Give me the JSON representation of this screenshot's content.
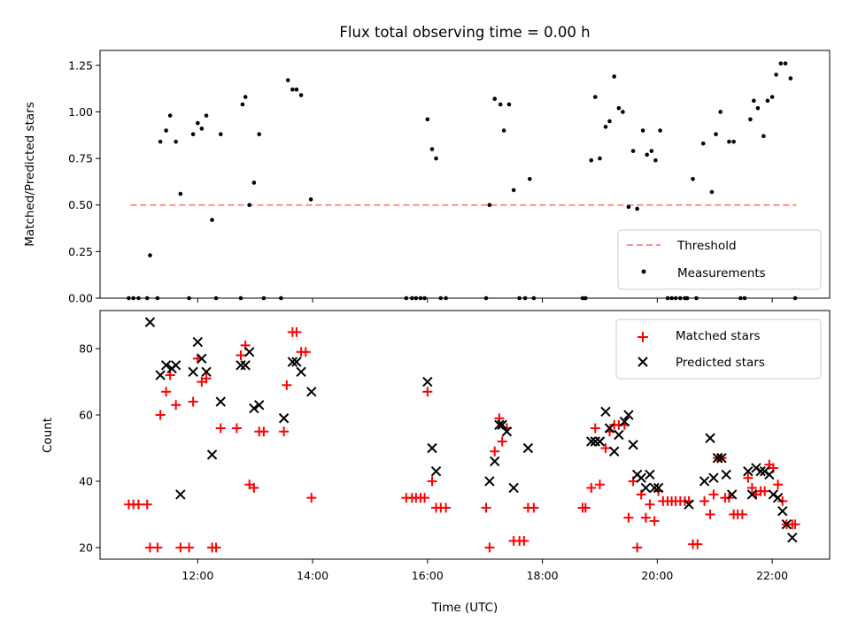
{
  "chart_data": [
    {
      "type": "scatter",
      "title": "Flux total observing time = 0.00 h",
      "xlabel": "",
      "ylabel": "Matched/Predicted stars",
      "ylim": [
        0,
        1.33
      ],
      "xlim_hours": [
        10.3,
        23.0
      ],
      "yticks": [
        "0.00",
        "0.25",
        "0.50",
        "0.75",
        "1.00",
        "1.25"
      ],
      "ytick_values": [
        0,
        0.25,
        0.5,
        0.75,
        1.0,
        1.25
      ],
      "xticks_hours": [
        12,
        14,
        16,
        18,
        20,
        22
      ],
      "legend_position": "lower-right",
      "threshold": {
        "name": "Threshold",
        "value": 0.5,
        "x_start": 10.83,
        "x_end": 22.42,
        "color": "#ff8080"
      },
      "measurements": {
        "name": "Measurements",
        "color": "#000000",
        "points": [
          [
            10.8,
            0
          ],
          [
            10.88,
            0
          ],
          [
            10.97,
            0
          ],
          [
            11.12,
            0
          ],
          [
            11.17,
            0.23
          ],
          [
            11.3,
            0
          ],
          [
            11.35,
            0.84
          ],
          [
            11.45,
            0.9
          ],
          [
            11.52,
            0.98
          ],
          [
            11.62,
            0.84
          ],
          [
            11.7,
            0.56
          ],
          [
            11.85,
            0
          ],
          [
            11.92,
            0.88
          ],
          [
            12.0,
            0.94
          ],
          [
            12.07,
            0.91
          ],
          [
            12.15,
            0.98
          ],
          [
            12.25,
            0.42
          ],
          [
            12.32,
            0
          ],
          [
            12.4,
            0.88
          ],
          [
            12.75,
            0
          ],
          [
            12.78,
            1.04
          ],
          [
            12.83,
            1.08
          ],
          [
            12.9,
            0.5
          ],
          [
            12.98,
            0.62
          ],
          [
            13.07,
            0.88
          ],
          [
            13.15,
            0
          ],
          [
            13.45,
            0
          ],
          [
            13.57,
            1.17
          ],
          [
            13.65,
            1.12
          ],
          [
            13.72,
            1.12
          ],
          [
            13.8,
            1.09
          ],
          [
            13.97,
            0.53
          ],
          [
            15.63,
            0
          ],
          [
            15.73,
            0
          ],
          [
            15.8,
            0
          ],
          [
            15.88,
            0
          ],
          [
            15.95,
            0
          ],
          [
            16.0,
            0.96
          ],
          [
            16.08,
            0.8
          ],
          [
            16.15,
            0.75
          ],
          [
            16.23,
            0
          ],
          [
            16.32,
            0
          ],
          [
            17.02,
            0
          ],
          [
            17.08,
            0.5
          ],
          [
            17.17,
            1.07
          ],
          [
            17.27,
            1.04
          ],
          [
            17.33,
            0.9
          ],
          [
            17.42,
            1.04
          ],
          [
            17.5,
            0.58
          ],
          [
            17.6,
            0
          ],
          [
            17.7,
            0
          ],
          [
            17.78,
            0.64
          ],
          [
            17.85,
            0
          ],
          [
            18.7,
            0
          ],
          [
            18.75,
            0
          ],
          [
            18.85,
            0.74
          ],
          [
            18.92,
            1.08
          ],
          [
            19.0,
            0.75
          ],
          [
            19.1,
            0.92
          ],
          [
            19.17,
            0.95
          ],
          [
            19.25,
            1.19
          ],
          [
            19.33,
            1.02
          ],
          [
            19.4,
            1.0
          ],
          [
            19.5,
            0.49
          ],
          [
            19.58,
            0.79
          ],
          [
            19.65,
            0.48
          ],
          [
            19.75,
            0.9
          ],
          [
            19.82,
            0.77
          ],
          [
            19.9,
            0.79
          ],
          [
            19.97,
            0.74
          ],
          [
            20.05,
            0.9
          ],
          [
            20.18,
            0
          ],
          [
            20.25,
            0
          ],
          [
            20.32,
            0
          ],
          [
            20.4,
            0
          ],
          [
            20.48,
            0
          ],
          [
            20.52,
            0
          ],
          [
            20.62,
            0.64
          ],
          [
            20.68,
            0
          ],
          [
            20.8,
            0.83
          ],
          [
            20.95,
            0.57
          ],
          [
            21.02,
            0.88
          ],
          [
            21.1,
            1.0
          ],
          [
            21.25,
            0.84
          ],
          [
            21.33,
            0.84
          ],
          [
            21.45,
            0
          ],
          [
            21.52,
            0
          ],
          [
            21.62,
            0.96
          ],
          [
            21.68,
            1.06
          ],
          [
            21.75,
            1.02
          ],
          [
            21.85,
            0.87
          ],
          [
            21.92,
            1.06
          ],
          [
            22.0,
            1.08
          ],
          [
            22.07,
            1.2
          ],
          [
            22.15,
            1.26
          ],
          [
            22.23,
            1.26
          ],
          [
            22.32,
            1.18
          ],
          [
            22.4,
            0
          ]
        ]
      }
    },
    {
      "type": "scatter",
      "title": "",
      "xlabel": "Time (UTC)",
      "ylabel": "Count",
      "ylim": [
        16.5,
        91.5
      ],
      "xlim_hours": [
        10.3,
        23.0
      ],
      "yticks": [
        "20",
        "40",
        "60",
        "80"
      ],
      "ytick_values": [
        20,
        40,
        60,
        80
      ],
      "xticks": [
        "12:00",
        "14:00",
        "16:00",
        "18:00",
        "20:00",
        "22:00"
      ],
      "xticks_hours": [
        12,
        14,
        16,
        18,
        20,
        22
      ],
      "legend_position": "upper-right",
      "series": [
        {
          "name": "Matched stars",
          "marker": "plus",
          "color": "#ff0000",
          "points": [
            [
              10.8,
              33
            ],
            [
              10.88,
              33
            ],
            [
              10.97,
              33
            ],
            [
              11.12,
              33
            ],
            [
              11.17,
              20
            ],
            [
              11.3,
              20
            ],
            [
              11.35,
              60
            ],
            [
              11.45,
              67
            ],
            [
              11.52,
              72
            ],
            [
              11.62,
              63
            ],
            [
              11.7,
              20
            ],
            [
              11.85,
              20
            ],
            [
              11.92,
              64
            ],
            [
              12.0,
              77
            ],
            [
              12.07,
              70
            ],
            [
              12.15,
              71
            ],
            [
              12.25,
              20
            ],
            [
              12.32,
              20
            ],
            [
              12.4,
              56
            ],
            [
              12.68,
              56
            ],
            [
              12.75,
              78
            ],
            [
              12.83,
              81
            ],
            [
              12.9,
              39
            ],
            [
              12.98,
              38
            ],
            [
              13.07,
              55
            ],
            [
              13.15,
              55
            ],
            [
              13.5,
              55
            ],
            [
              13.55,
              69
            ],
            [
              13.65,
              85
            ],
            [
              13.72,
              85
            ],
            [
              13.8,
              79
            ],
            [
              13.88,
              79
            ],
            [
              13.98,
              35
            ],
            [
              15.63,
              35
            ],
            [
              15.73,
              35
            ],
            [
              15.8,
              35
            ],
            [
              15.88,
              35
            ],
            [
              15.95,
              35
            ],
            [
              16.0,
              67
            ],
            [
              16.08,
              40
            ],
            [
              16.15,
              32
            ],
            [
              16.23,
              32
            ],
            [
              16.32,
              32
            ],
            [
              17.02,
              32
            ],
            [
              17.08,
              20
            ],
            [
              17.17,
              49
            ],
            [
              17.25,
              59
            ],
            [
              17.3,
              52
            ],
            [
              17.38,
              56
            ],
            [
              17.5,
              22
            ],
            [
              17.6,
              22
            ],
            [
              17.68,
              22
            ],
            [
              17.75,
              32
            ],
            [
              17.85,
              32
            ],
            [
              18.7,
              32
            ],
            [
              18.75,
              32
            ],
            [
              18.85,
              38
            ],
            [
              18.92,
              56
            ],
            [
              19.0,
              39
            ],
            [
              19.1,
              50
            ],
            [
              19.17,
              55
            ],
            [
              19.25,
              57
            ],
            [
              19.33,
              57
            ],
            [
              19.43,
              57
            ],
            [
              19.5,
              29
            ],
            [
              19.58,
              40
            ],
            [
              19.65,
              20
            ],
            [
              19.72,
              36
            ],
            [
              19.8,
              29
            ],
            [
              19.87,
              33
            ],
            [
              19.95,
              28
            ],
            [
              20.02,
              37
            ],
            [
              20.1,
              34
            ],
            [
              20.18,
              34
            ],
            [
              20.25,
              34
            ],
            [
              20.32,
              34
            ],
            [
              20.4,
              34
            ],
            [
              20.48,
              34
            ],
            [
              20.55,
              34
            ],
            [
              20.62,
              21
            ],
            [
              20.7,
              21
            ],
            [
              20.82,
              34
            ],
            [
              20.92,
              30
            ],
            [
              20.98,
              36
            ],
            [
              21.05,
              47
            ],
            [
              21.12,
              47
            ],
            [
              21.18,
              35
            ],
            [
              21.25,
              35
            ],
            [
              21.33,
              30
            ],
            [
              21.4,
              30
            ],
            [
              21.48,
              30
            ],
            [
              21.58,
              41
            ],
            [
              21.65,
              38
            ],
            [
              21.72,
              36
            ],
            [
              21.8,
              37
            ],
            [
              21.87,
              37
            ],
            [
              21.95,
              45
            ],
            [
              22.02,
              44
            ],
            [
              22.1,
              39
            ],
            [
              22.18,
              34
            ],
            [
              22.25,
              27
            ],
            [
              22.35,
              27
            ],
            [
              22.4,
              27
            ]
          ]
        },
        {
          "name": "Predicted stars",
          "marker": "x",
          "color": "#000000",
          "points": [
            [
              11.17,
              88
            ],
            [
              11.35,
              72
            ],
            [
              11.45,
              75
            ],
            [
              11.55,
              74
            ],
            [
              11.62,
              75
            ],
            [
              11.7,
              36
            ],
            [
              11.92,
              73
            ],
            [
              12.0,
              82
            ],
            [
              12.07,
              77
            ],
            [
              12.15,
              73
            ],
            [
              12.25,
              48
            ],
            [
              12.4,
              64
            ],
            [
              12.75,
              75
            ],
            [
              12.83,
              75
            ],
            [
              12.9,
              79
            ],
            [
              12.98,
              62
            ],
            [
              13.07,
              63
            ],
            [
              13.5,
              59
            ],
            [
              13.65,
              76
            ],
            [
              13.72,
              76
            ],
            [
              13.8,
              73
            ],
            [
              13.98,
              67
            ],
            [
              16.0,
              70
            ],
            [
              16.08,
              50
            ],
            [
              16.15,
              43
            ],
            [
              17.08,
              40
            ],
            [
              17.17,
              46
            ],
            [
              17.25,
              57
            ],
            [
              17.3,
              57
            ],
            [
              17.38,
              55
            ],
            [
              17.5,
              38
            ],
            [
              17.75,
              50
            ],
            [
              18.85,
              52
            ],
            [
              18.92,
              52
            ],
            [
              19.0,
              52
            ],
            [
              19.1,
              61
            ],
            [
              19.17,
              56
            ],
            [
              19.25,
              49
            ],
            [
              19.33,
              54
            ],
            [
              19.43,
              58
            ],
            [
              19.5,
              60
            ],
            [
              19.58,
              51
            ],
            [
              19.65,
              42
            ],
            [
              19.72,
              41
            ],
            [
              19.8,
              38
            ],
            [
              19.87,
              42
            ],
            [
              19.95,
              38
            ],
            [
              20.02,
              38
            ],
            [
              20.55,
              33
            ],
            [
              20.82,
              40
            ],
            [
              20.92,
              53
            ],
            [
              20.98,
              41
            ],
            [
              21.05,
              47
            ],
            [
              21.12,
              47
            ],
            [
              21.2,
              42
            ],
            [
              21.3,
              36
            ],
            [
              21.58,
              43
            ],
            [
              21.65,
              36
            ],
            [
              21.72,
              44
            ],
            [
              21.8,
              43
            ],
            [
              21.87,
              43
            ],
            [
              21.95,
              42
            ],
            [
              22.02,
              36
            ],
            [
              22.1,
              35
            ],
            [
              22.18,
              31
            ],
            [
              22.25,
              27
            ],
            [
              22.35,
              23
            ]
          ]
        }
      ]
    }
  ]
}
